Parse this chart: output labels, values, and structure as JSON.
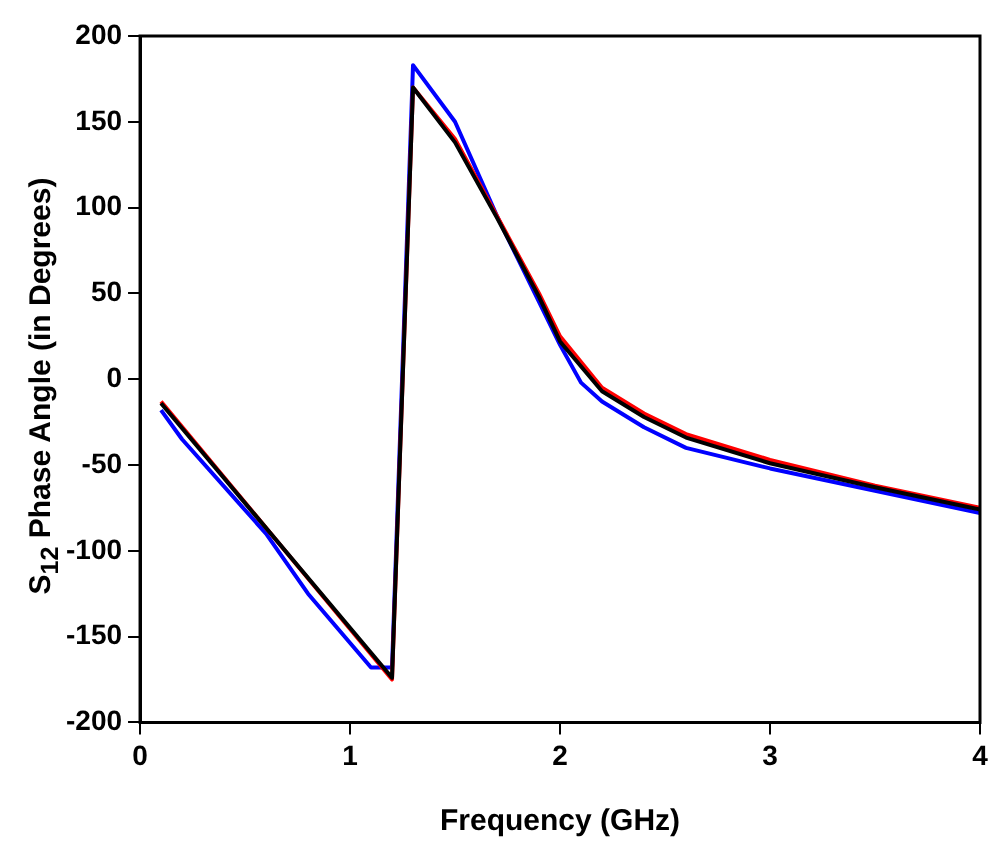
{
  "chart_data": {
    "type": "line",
    "xlabel": "Frequency (GHz)",
    "ylabel": "S$_{12}$ Phase Angle (in Degrees)",
    "xlim": [
      0,
      4
    ],
    "ylim": [
      -200,
      200
    ],
    "xticks": [
      0,
      1,
      2,
      3,
      4
    ],
    "yticks": [
      -200,
      -150,
      -100,
      -50,
      0,
      50,
      100,
      150,
      200
    ],
    "grid": false,
    "legend": false,
    "marker": "none",
    "line_style": "solid",
    "series": [
      {
        "color": "#000000",
        "x": [
          0.1,
          1.2,
          1.3,
          1.5,
          1.7,
          1.9,
          2.0,
          2.2,
          2.4,
          2.6,
          3.0,
          3.5,
          4.0
        ],
        "values": [
          -14,
          -174,
          170,
          138,
          94,
          48,
          22,
          -7,
          -22,
          -34,
          -49,
          -63,
          -76
        ]
      },
      {
        "color": "#ff0000",
        "x": [
          0.1,
          1.2,
          1.3,
          1.5,
          1.7,
          1.9,
          2.0,
          2.2,
          2.4,
          2.6,
          3.0,
          3.5,
          4.0
        ],
        "values": [
          -13,
          -175,
          170,
          140,
          95,
          50,
          25,
          -5,
          -20,
          -32,
          -47,
          -62,
          -75
        ]
      },
      {
        "color": "#0000ff",
        "x": [
          0.1,
          0.2,
          0.6,
          0.8,
          1.1,
          1.2,
          1.3,
          1.5,
          1.7,
          1.9,
          2.0,
          2.1,
          2.2,
          2.4,
          2.6,
          3.0,
          3.5,
          4.0
        ],
        "values": [
          -18,
          -35,
          -90,
          -125,
          -168,
          -168,
          183,
          150,
          95,
          45,
          20,
          -2,
          -13,
          -28,
          -40,
          -52,
          -65,
          -78
        ]
      }
    ]
  }
}
